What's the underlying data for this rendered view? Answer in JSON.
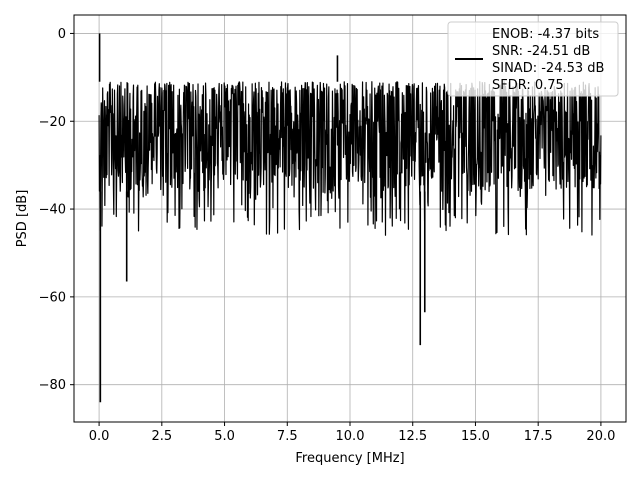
{
  "chart_data": {
    "type": "line",
    "xlabel": "Frequency [MHz]",
    "ylabel": "PSD [dB]",
    "xlim": [
      -1.0,
      21.0
    ],
    "ylim": [
      -88.5,
      4.2
    ],
    "xticks": [
      0.0,
      2.5,
      5.0,
      7.5,
      10.0,
      12.5,
      15.0,
      17.5,
      20.0
    ],
    "xtick_labels": [
      "0.0",
      "2.5",
      "5.0",
      "7.5",
      "10.0",
      "12.5",
      "15.0",
      "17.5",
      "20.0"
    ],
    "yticks": [
      0,
      -20,
      -40,
      -60,
      -80
    ],
    "ytick_labels": [
      "0",
      "−20",
      "−40",
      "−60",
      "−80"
    ],
    "grid": true,
    "legend_placement": "top-right",
    "series": [
      {
        "legend_lines": [
          "ENOB: -4.37 bits",
          "SNR: -24.51 dB",
          "SINAD: -24.53 dB",
          "SFDR: 0.75"
        ],
        "color": "#000000",
        "noise_band": {
          "x_start": 0.0,
          "x_end": 20.0,
          "upper_envelope": -11,
          "lower_envelope": -36
        },
        "spikes": [
          {
            "x": 0.02,
            "y": 0.0
          },
          {
            "x": 0.05,
            "y": -84.0
          },
          {
            "x": 1.1,
            "y": -56.5
          },
          {
            "x": 9.5,
            "y": -5.0
          },
          {
            "x": 12.8,
            "y": -71.0
          },
          {
            "x": 12.98,
            "y": -63.5
          }
        ]
      }
    ]
  }
}
